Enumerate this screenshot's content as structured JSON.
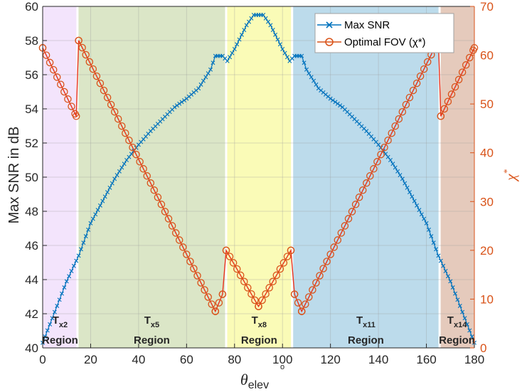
{
  "chart_data": {
    "type": "line",
    "xlabel": "θ",
    "xlabel_sub": "elev",
    "xlabel_unit": "o",
    "ylabel_left": "Max SNR in dB",
    "ylabel_right": "χ",
    "ylabel_right_sup": "*",
    "xlim": [
      0,
      180
    ],
    "ylim_left": [
      40,
      60
    ],
    "ylim_right": [
      0,
      70
    ],
    "x_ticks": [
      0,
      20,
      40,
      60,
      80,
      100,
      120,
      140,
      160,
      180
    ],
    "y_left_ticks": [
      40,
      42,
      44,
      46,
      48,
      50,
      52,
      54,
      56,
      58,
      60
    ],
    "y_right_ticks": [
      0,
      10,
      20,
      30,
      40,
      50,
      60,
      70
    ],
    "grid": true,
    "legend_position": "top-right",
    "regions": [
      {
        "from": 0,
        "to": 14.5,
        "color": "#f3e4fc",
        "t_main": "T",
        "t_sub": "x2",
        "word": "Region"
      },
      {
        "from": 14.5,
        "to": 76.5,
        "color": "#dbe6c7",
        "t_main": "T",
        "t_sub": "x5",
        "word": "Region"
      },
      {
        "from": 76.5,
        "to": 104,
        "color": "#fafbb7",
        "t_main": "T",
        "t_sub": "x8",
        "word": "Region"
      },
      {
        "from": 104,
        "to": 165.5,
        "color": "#bcdbeb",
        "t_main": "T",
        "t_sub": "x11",
        "word": "Region"
      },
      {
        "from": 165.5,
        "to": 180,
        "color": "#e5cabc",
        "t_main": "T",
        "t_sub": "x14",
        "word": "Region"
      }
    ],
    "series": [
      {
        "name": "Max SNR",
        "axis": "left",
        "color": "#0072bd",
        "marker": "x",
        "points": [
          [
            0,
            40.3
          ],
          [
            5,
            42.1
          ],
          [
            10,
            43.9
          ],
          [
            15,
            45.4
          ],
          [
            20,
            47.3
          ],
          [
            25,
            48.6
          ],
          [
            30,
            49.9
          ],
          [
            35,
            51.0
          ],
          [
            40,
            51.9
          ],
          [
            45,
            52.7
          ],
          [
            50,
            53.4
          ],
          [
            55,
            54.1
          ],
          [
            60,
            54.6
          ],
          [
            65,
            55.2
          ],
          [
            70,
            56.3
          ],
          [
            72,
            57.1
          ],
          [
            75,
            57.1
          ],
          [
            77,
            56.8
          ],
          [
            80,
            57.5
          ],
          [
            85,
            58.9
          ],
          [
            88,
            59.5
          ],
          [
            92,
            59.5
          ],
          [
            95,
            58.9
          ],
          [
            100,
            57.5
          ],
          [
            103,
            56.8
          ],
          [
            105,
            57.1
          ],
          [
            108,
            57.1
          ],
          [
            110,
            56.3
          ],
          [
            115,
            55.2
          ],
          [
            120,
            54.6
          ],
          [
            125,
            54.1
          ],
          [
            130,
            53.4
          ],
          [
            135,
            52.7
          ],
          [
            140,
            51.9
          ],
          [
            145,
            51.0
          ],
          [
            150,
            49.9
          ],
          [
            155,
            48.6
          ],
          [
            160,
            47.3
          ],
          [
            165,
            45.4
          ],
          [
            170,
            43.9
          ],
          [
            175,
            42.1
          ],
          [
            180,
            40.3
          ]
        ]
      },
      {
        "name": "Optimal FOV (χ*)",
        "axis": "right",
        "color": "#d95319",
        "marker": "o",
        "points": [
          [
            0,
            61.5
          ],
          [
            14,
            47.5
          ],
          [
            15,
            63
          ],
          [
            72,
            7.5
          ],
          [
            75,
            11
          ],
          [
            76.5,
            20
          ],
          [
            90,
            8.5
          ],
          [
            103.5,
            20
          ],
          [
            105,
            11
          ],
          [
            108,
            7.5
          ],
          [
            165,
            63
          ],
          [
            166,
            47.5
          ],
          [
            180,
            61.5
          ]
        ]
      }
    ]
  }
}
